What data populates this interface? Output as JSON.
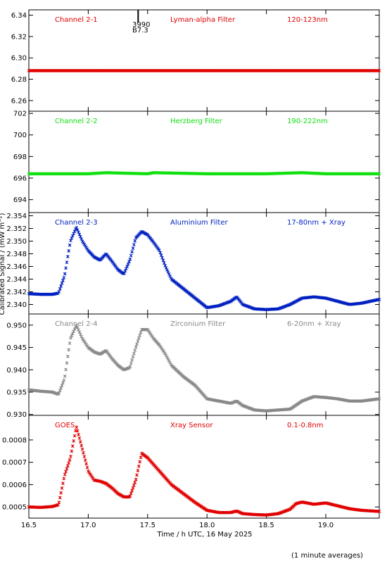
{
  "figure": {
    "xlabel": "Time / h UTC, 16 May 2025",
    "ylabel": "Calibrated Signal / (mW m⁻²)",
    "footnote": "(1 minute averages)",
    "marker_annotation": {
      "top": "3990",
      "bottom": "B7.3",
      "x": 17.42
    }
  },
  "chart_data": [
    {
      "type": "scatter",
      "labels": [
        "Channel 2-1",
        "Lyman-alpha Filter",
        "120-123nm"
      ],
      "color": "#e00000",
      "xlim": [
        16.5,
        19.45
      ],
      "ylim": [
        6.25,
        6.345
      ],
      "yticks": [
        6.26,
        6.28,
        6.3,
        6.32,
        6.34
      ],
      "ytick_labels": [
        "6.26",
        "6.28",
        "6.30",
        "6.32",
        "6.34"
      ],
      "x": [
        16.5,
        17.0,
        17.5,
        18.0,
        18.5,
        19.0,
        19.45
      ],
      "y": [
        6.288,
        6.288,
        6.288,
        6.288,
        6.288,
        6.288,
        6.288
      ]
    },
    {
      "type": "scatter",
      "labels": [
        "Channel 2-2",
        "Herzberg Filter",
        "190-222nm"
      ],
      "color": "#10e010",
      "xlim": [
        16.5,
        19.45
      ],
      "ylim": [
        692.8,
        702.2
      ],
      "yticks": [
        694,
        696,
        698,
        700,
        702
      ],
      "ytick_labels": [
        "694",
        "696",
        "698",
        "700",
        "702"
      ],
      "x": [
        16.5,
        17.0,
        17.15,
        17.5,
        17.55,
        18.0,
        18.5,
        18.8,
        19.0,
        19.45
      ],
      "y": [
        696.4,
        696.4,
        696.5,
        696.4,
        696.5,
        696.4,
        696.4,
        696.5,
        696.4,
        696.4
      ]
    },
    {
      "type": "scatter",
      "labels": [
        "Channel 2-3",
        "Aluminium Filter",
        "17-80nm + Xray"
      ],
      "color": "#0020c0",
      "xlim": [
        16.5,
        19.45
      ],
      "ylim": [
        2.3385,
        2.3545
      ],
      "yticks": [
        2.34,
        2.342,
        2.344,
        2.346,
        2.348,
        2.35,
        2.352,
        2.354
      ],
      "ytick_labels": [
        "2.340",
        "2.342",
        "2.344",
        "2.346",
        "2.348",
        "2.350",
        "2.352",
        "2.354"
      ],
      "x": [
        16.5,
        16.6,
        16.7,
        16.75,
        16.8,
        16.85,
        16.9,
        16.95,
        17.0,
        17.05,
        17.1,
        17.15,
        17.2,
        17.25,
        17.3,
        17.35,
        17.4,
        17.45,
        17.5,
        17.55,
        17.6,
        17.65,
        17.7,
        17.8,
        17.9,
        18.0,
        18.1,
        18.2,
        18.25,
        18.3,
        18.4,
        18.5,
        18.6,
        18.7,
        18.8,
        18.9,
        19.0,
        19.1,
        19.2,
        19.3,
        19.45
      ],
      "y": [
        2.3417,
        2.3416,
        2.3416,
        2.3418,
        2.3445,
        2.35,
        2.3522,
        2.35,
        2.3485,
        2.3475,
        2.347,
        2.348,
        2.3468,
        2.3455,
        2.3448,
        2.347,
        2.3505,
        2.3515,
        2.351,
        2.3498,
        2.3485,
        2.346,
        2.344,
        2.3425,
        2.341,
        2.3395,
        2.3398,
        2.3405,
        2.3412,
        2.34,
        2.3393,
        2.3392,
        2.3393,
        2.34,
        2.341,
        2.3412,
        2.341,
        2.3405,
        2.34,
        2.3402,
        2.3408
      ]
    },
    {
      "type": "scatter",
      "labels": [
        "Channel 2-4",
        "Zirconium Filter",
        "6-20nm + Xray"
      ],
      "color": "#888888",
      "xlim": [
        16.5,
        19.45
      ],
      "ylim": [
        0.9298,
        0.9525
      ],
      "yticks": [
        0.93,
        0.935,
        0.94,
        0.945,
        0.95
      ],
      "ytick_labels": [
        "0.930",
        "0.935",
        "0.940",
        "0.945",
        "0.950"
      ],
      "x": [
        16.5,
        16.6,
        16.7,
        16.75,
        16.8,
        16.85,
        16.9,
        16.95,
        17.0,
        17.05,
        17.1,
        17.15,
        17.2,
        17.25,
        17.3,
        17.35,
        17.4,
        17.45,
        17.5,
        17.55,
        17.6,
        17.65,
        17.7,
        17.8,
        17.9,
        18.0,
        18.1,
        18.2,
        18.25,
        18.3,
        18.4,
        18.5,
        18.6,
        18.7,
        18.8,
        18.9,
        19.0,
        19.1,
        19.2,
        19.3,
        19.45
      ],
      "y": [
        0.9355,
        0.9352,
        0.935,
        0.9345,
        0.938,
        0.947,
        0.95,
        0.947,
        0.945,
        0.944,
        0.9435,
        0.9443,
        0.9425,
        0.941,
        0.94,
        0.9405,
        0.945,
        0.949,
        0.949,
        0.947,
        0.9455,
        0.9435,
        0.941,
        0.9385,
        0.9365,
        0.9335,
        0.933,
        0.9325,
        0.933,
        0.932,
        0.931,
        0.9308,
        0.931,
        0.9312,
        0.933,
        0.934,
        0.9338,
        0.9335,
        0.933,
        0.933,
        0.9335
      ]
    },
    {
      "type": "scatter",
      "labels": [
        "GOES",
        "Xray Sensor",
        "0.1-0.8nm"
      ],
      "color": "#e00000",
      "xlim": [
        16.5,
        19.45
      ],
      "ylim": [
        0.00045,
        0.00091
      ],
      "yticks": [
        0.0005,
        0.0006,
        0.0007,
        0.0008
      ],
      "ytick_labels": [
        "0.0005",
        "0.0006",
        "0.0007",
        "0.0008"
      ],
      "x": [
        16.5,
        16.6,
        16.7,
        16.75,
        16.8,
        16.85,
        16.9,
        16.95,
        17.0,
        17.05,
        17.1,
        17.15,
        17.2,
        17.25,
        17.3,
        17.35,
        17.4,
        17.45,
        17.5,
        17.55,
        17.6,
        17.65,
        17.7,
        17.8,
        17.9,
        18.0,
        18.1,
        18.2,
        18.25,
        18.3,
        18.4,
        18.5,
        18.6,
        18.7,
        18.75,
        18.8,
        18.9,
        19.0,
        19.1,
        19.2,
        19.3,
        19.45
      ],
      "y": [
        0.0005,
        0.000498,
        0.000502,
        0.00051,
        0.00064,
        0.00072,
        0.00086,
        0.00076,
        0.00066,
        0.00062,
        0.000615,
        0.000605,
        0.000585,
        0.00056,
        0.000545,
        0.000545,
        0.00062,
        0.00074,
        0.00072,
        0.00069,
        0.00066,
        0.00063,
        0.0006,
        0.00056,
        0.00052,
        0.000485,
        0.000475,
        0.000475,
        0.000482,
        0.00047,
        0.000466,
        0.000464,
        0.00047,
        0.00049,
        0.000515,
        0.000522,
        0.000512,
        0.000518,
        0.000505,
        0.000492,
        0.000485,
        0.00048
      ]
    }
  ]
}
